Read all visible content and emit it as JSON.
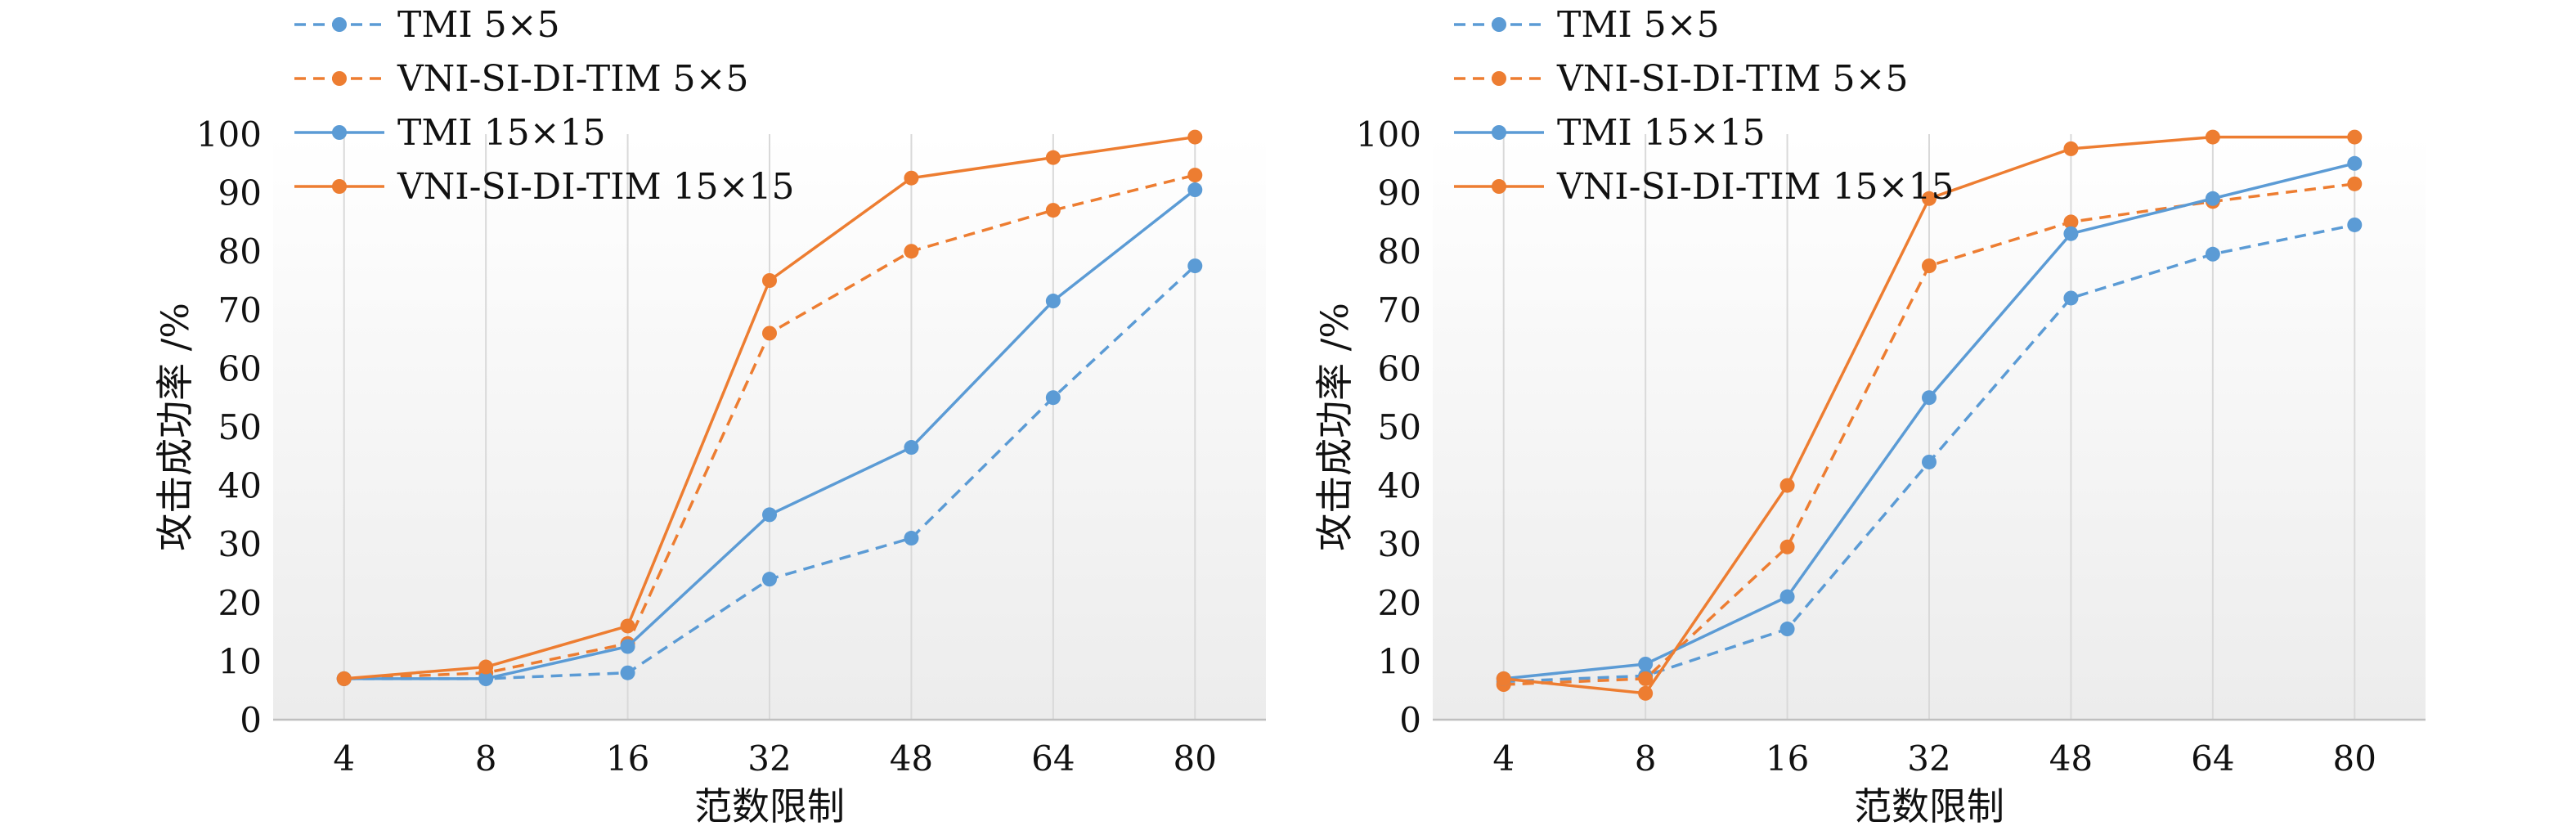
{
  "chart_data": [
    {
      "type": "line",
      "title": "",
      "xlabel": "范数限制",
      "ylabel": "攻击成功率 /%",
      "categories": [
        "4",
        "8",
        "16",
        "32",
        "48",
        "64",
        "80"
      ],
      "ylim": [
        0,
        100
      ],
      "yticks": [
        0,
        10,
        20,
        30,
        40,
        50,
        60,
        70,
        80,
        90,
        100
      ],
      "grid": "vertical",
      "legend_position": "top-left",
      "series": [
        {
          "name": "TMI 5×5",
          "color": "#5b9bd5",
          "dash": true,
          "values": [
            7,
            7,
            8,
            24,
            31,
            55,
            77.5
          ]
        },
        {
          "name": "VNI-SI-DI-TIM 5×5",
          "color": "#ed7d31",
          "dash": true,
          "values": [
            7,
            8,
            13,
            66,
            80,
            87,
            93
          ]
        },
        {
          "name": "TMI 15×15",
          "color": "#5b9bd5",
          "dash": false,
          "values": [
            7,
            7,
            12.5,
            35,
            46.5,
            71.5,
            90.5
          ]
        },
        {
          "name": "VNI-SI-DI-TIM 15×15",
          "color": "#ed7d31",
          "dash": false,
          "values": [
            7,
            9,
            16,
            75,
            92.5,
            96,
            99.5
          ]
        }
      ]
    },
    {
      "type": "line",
      "title": "",
      "xlabel": "范数限制",
      "ylabel": "攻击成功率 /%",
      "categories": [
        "4",
        "8",
        "16",
        "32",
        "48",
        "64",
        "80"
      ],
      "ylim": [
        0,
        100
      ],
      "yticks": [
        0,
        10,
        20,
        30,
        40,
        50,
        60,
        70,
        80,
        90,
        100
      ],
      "grid": "vertical",
      "legend_position": "top-left",
      "series": [
        {
          "name": "TMI 5×5",
          "color": "#5b9bd5",
          "dash": true,
          "values": [
            6.5,
            7.5,
            15.5,
            44,
            72,
            79.5,
            84.5
          ]
        },
        {
          "name": "VNI-SI-DI-TIM 5×5",
          "color": "#ed7d31",
          "dash": true,
          "values": [
            6,
            7,
            29.5,
            77.5,
            85,
            88.5,
            91.5
          ]
        },
        {
          "name": "TMI 15×15",
          "color": "#5b9bd5",
          "dash": false,
          "values": [
            7,
            9.5,
            21,
            55,
            83,
            89,
            95
          ]
        },
        {
          "name": "VNI-SI-DI-TIM 15×15",
          "color": "#ed7d31",
          "dash": false,
          "values": [
            7,
            4.5,
            40,
            89,
            97.5,
            99.5,
            99.5
          ]
        }
      ]
    }
  ]
}
